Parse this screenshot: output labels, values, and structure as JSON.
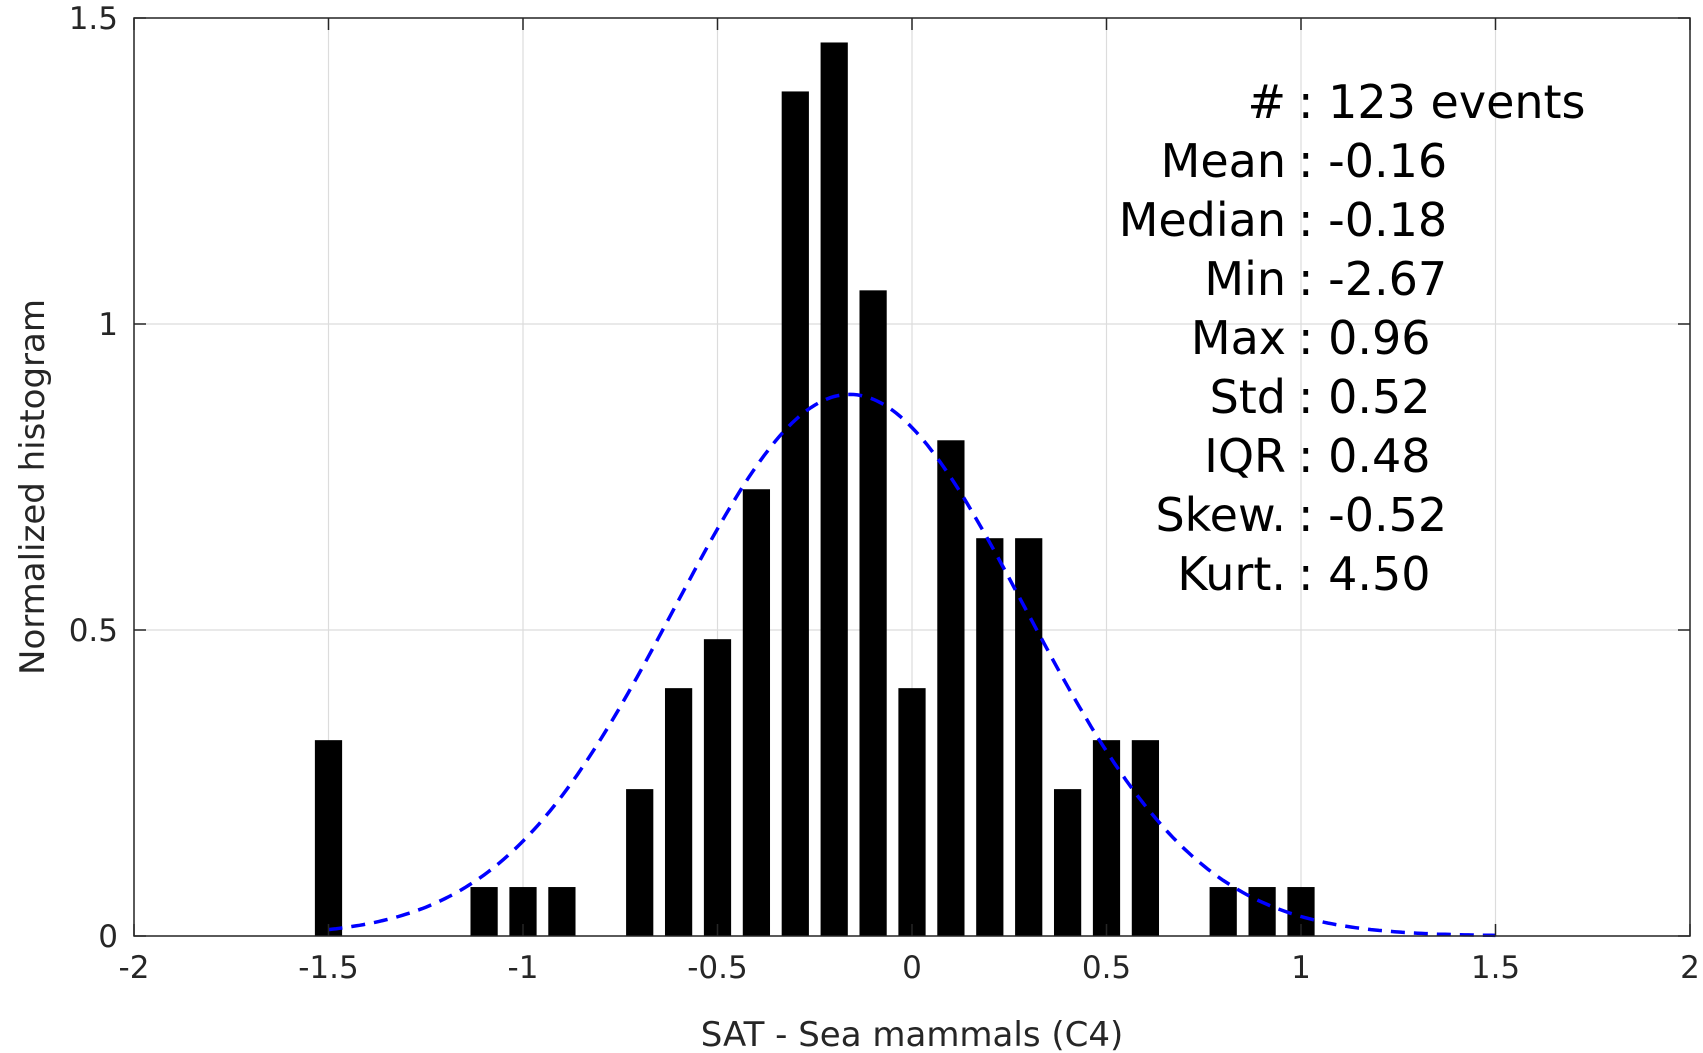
{
  "chart_data": {
    "type": "bar",
    "xlabel": "SAT - Sea mammals (C4)",
    "ylabel": "Normalized histogram",
    "xlim": [
      -2,
      2
    ],
    "ylim": [
      0,
      1.5
    ],
    "xticks": [
      -2,
      -1.5,
      -1,
      -0.5,
      0,
      0.5,
      1,
      1.5,
      2
    ],
    "xtick_labels": [
      "-2",
      "-1.5",
      "-1",
      "-0.5",
      "0",
      "0.5",
      "1",
      "1.5",
      "2"
    ],
    "yticks": [
      0,
      0.5,
      1,
      1.5
    ],
    "ytick_labels": [
      "0",
      "0.5",
      "1",
      "1.5"
    ],
    "grid": true,
    "bar_color": "#000000",
    "bars": [
      {
        "x": -1.5,
        "value": 0.32
      },
      {
        "x": -1.1,
        "value": 0.08
      },
      {
        "x": -1.0,
        "value": 0.08
      },
      {
        "x": -0.9,
        "value": 0.08
      },
      {
        "x": -0.7,
        "value": 0.24
      },
      {
        "x": -0.6,
        "value": 0.405
      },
      {
        "x": -0.5,
        "value": 0.485
      },
      {
        "x": -0.4,
        "value": 0.73
      },
      {
        "x": -0.3,
        "value": 1.38
      },
      {
        "x": -0.2,
        "value": 1.46
      },
      {
        "x": -0.1,
        "value": 1.055
      },
      {
        "x": 0.0,
        "value": 0.405
      },
      {
        "x": 0.1,
        "value": 0.81
      },
      {
        "x": 0.2,
        "value": 0.65
      },
      {
        "x": 0.3,
        "value": 0.65
      },
      {
        "x": 0.4,
        "value": 0.24
      },
      {
        "x": 0.5,
        "value": 0.32
      },
      {
        "x": 0.6,
        "value": 0.32
      },
      {
        "x": 0.8,
        "value": 0.08
      },
      {
        "x": 0.9,
        "value": 0.08
      },
      {
        "x": 1.0,
        "value": 0.08
      }
    ],
    "bar_width": 0.07,
    "fit_curve": {
      "style": "dashed",
      "color": "#0000ff",
      "mean": -0.16,
      "std": 0.45,
      "peak": 0.885,
      "x_range": [
        -1.5,
        1.5
      ]
    },
    "stats": [
      {
        "label": "#  ",
        "value": ": 123 events"
      },
      {
        "label": "Mean",
        "value": ": -0.16"
      },
      {
        "label": "Median",
        "value": ": -0.18"
      },
      {
        "label": "Min",
        "value": ": -2.67"
      },
      {
        "label": "Max",
        "value": ": 0.96"
      },
      {
        "label": "Std",
        "value": ": 0.52"
      },
      {
        "label": "IQR",
        "value": ": 0.48"
      },
      {
        "label": "Skew.",
        "value": ": -0.52"
      },
      {
        "label": "Kurt.",
        "value": ": 4.50"
      }
    ]
  }
}
